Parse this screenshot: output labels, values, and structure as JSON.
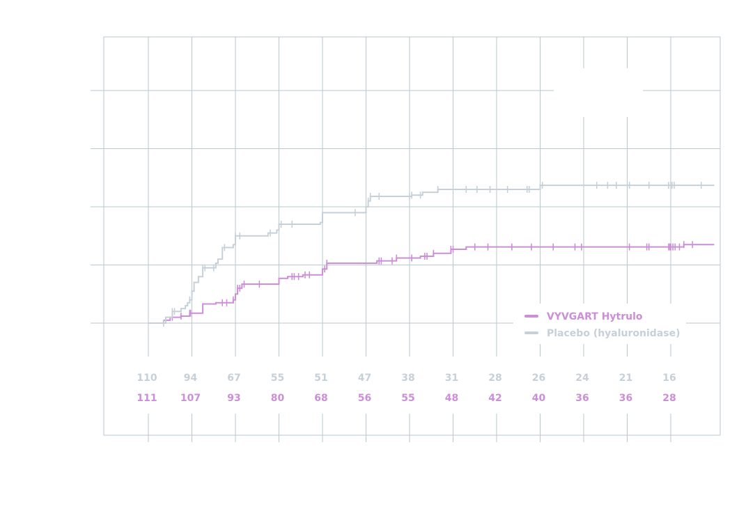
{
  "colors": {
    "vyvgart": "#cc8ed8",
    "placebo": "#c6d0d8",
    "grid": "#b9c7cf"
  },
  "legend": {
    "placement": "bottom-right",
    "items": [
      {
        "label": "VYVGART Hytrulo",
        "color": "#cc8ed8"
      },
      {
        "label": "Placebo (hyaluronidase)",
        "color": "#c6d0d8"
      }
    ]
  },
  "numbers_at_risk": {
    "placebo": [
      "110",
      "94",
      "67",
      "55",
      "51",
      "47",
      "38",
      "31",
      "28",
      "26",
      "24",
      "21",
      "16"
    ],
    "vyvgart": [
      "111",
      "107",
      "93",
      "80",
      "68",
      "56",
      "55",
      "48",
      "42",
      "40",
      "36",
      "36",
      "28"
    ]
  },
  "chart_data": {
    "type": "line",
    "subtype": "kaplan-meier step curve",
    "title": "",
    "xlabel": "",
    "ylabel": "",
    "x_ticks": [
      0,
      1,
      2,
      3,
      4,
      5,
      6,
      7,
      8,
      9,
      10,
      11,
      12
    ],
    "ylim": [
      0,
      0.4
    ],
    "y_gridlines": [
      0,
      0.1,
      0.2,
      0.3,
      0.4
    ],
    "grid": true,
    "series": [
      {
        "name": "VYVGART Hytrulo",
        "color": "#cc8ed8",
        "steps": [
          [
            0,
            0
          ],
          [
            0.35,
            0.005
          ],
          [
            0.5,
            0.01
          ],
          [
            0.75,
            0.012
          ],
          [
            0.95,
            0.017
          ],
          [
            1.25,
            0.033
          ],
          [
            1.55,
            0.035
          ],
          [
            1.95,
            0.04
          ],
          [
            2.0,
            0.05
          ],
          [
            2.05,
            0.06
          ],
          [
            2.15,
            0.067
          ],
          [
            3.0,
            0.077
          ],
          [
            3.2,
            0.08
          ],
          [
            3.55,
            0.083
          ],
          [
            4.0,
            0.093
          ],
          [
            4.1,
            0.103
          ],
          [
            5.25,
            0.107
          ],
          [
            5.7,
            0.112
          ],
          [
            6.25,
            0.115
          ],
          [
            6.55,
            0.12
          ],
          [
            6.95,
            0.127
          ],
          [
            7.3,
            0.131
          ],
          [
            12.3,
            0.135
          ],
          [
            13.0,
            0.135
          ]
        ],
        "censored": [
          0.55,
          0.75,
          0.95,
          0.97,
          1.7,
          1.8,
          1.95,
          2.05,
          2.1,
          2.2,
          2.55,
          3.3,
          3.35,
          3.45,
          3.6,
          3.7,
          4.05,
          4.1,
          5.3,
          5.35,
          5.6,
          5.7,
          6.05,
          6.35,
          6.4,
          6.55,
          6.95,
          7.0,
          7.5,
          7.8,
          8.35,
          8.8,
          9.3,
          9.8,
          9.95,
          11.05,
          11.45,
          11.5,
          11.95,
          11.98,
          12.0,
          12.05,
          12.1,
          12.2,
          12.3,
          12.5
        ]
      },
      {
        "name": "Placebo (hyaluronidase)",
        "color": "#c6d0d8",
        "steps": [
          [
            0,
            0
          ],
          [
            0.4,
            0.01
          ],
          [
            0.55,
            0.02
          ],
          [
            0.75,
            0.025
          ],
          [
            0.85,
            0.03
          ],
          [
            0.9,
            0.035
          ],
          [
            0.95,
            0.04
          ],
          [
            1.0,
            0.055
          ],
          [
            1.05,
            0.07
          ],
          [
            1.15,
            0.08
          ],
          [
            1.25,
            0.095
          ],
          [
            1.55,
            0.103
          ],
          [
            1.6,
            0.11
          ],
          [
            1.7,
            0.13
          ],
          [
            1.95,
            0.135
          ],
          [
            2.0,
            0.15
          ],
          [
            2.75,
            0.155
          ],
          [
            2.95,
            0.16
          ],
          [
            3.0,
            0.17
          ],
          [
            3.95,
            0.173
          ],
          [
            4.0,
            0.19
          ],
          [
            5.0,
            0.2
          ],
          [
            5.05,
            0.21
          ],
          [
            5.1,
            0.218
          ],
          [
            6.05,
            0.22
          ],
          [
            6.3,
            0.225
          ],
          [
            6.65,
            0.23
          ],
          [
            9.0,
            0.237
          ],
          [
            13.0,
            0.237
          ]
        ],
        "censored": [
          0.35,
          0.55,
          0.6,
          0.95,
          1.25,
          1.3,
          1.5,
          1.75,
          2.0,
          2.1,
          2.8,
          3.05,
          3.3,
          4.75,
          5.05,
          5.1,
          5.3,
          6.0,
          6.05,
          6.25,
          6.65,
          7.3,
          7.55,
          7.85,
          8.25,
          8.7,
          8.75,
          9.05,
          10.3,
          10.55,
          10.75,
          11.05,
          11.5,
          11.95,
          12.0,
          12.03,
          12.08,
          12.7
        ]
      }
    ]
  }
}
